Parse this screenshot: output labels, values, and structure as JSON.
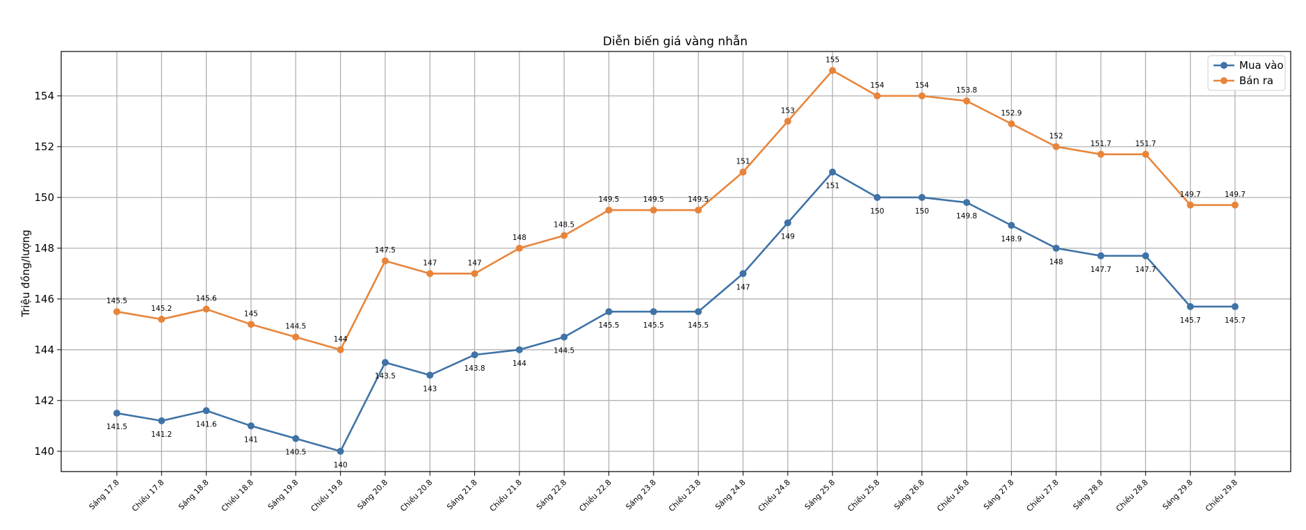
{
  "chart_data": {
    "type": "line",
    "title": "Diễn biến giá vàng nhẫn",
    "xlabel": "",
    "ylabel": "Triệu đồng/lượng",
    "ylim": [
      139.2,
      155.75
    ],
    "yticks": [
      140,
      142,
      144,
      146,
      148,
      150,
      152,
      154
    ],
    "grid": true,
    "legend_position": "top-right",
    "categories": [
      "Sáng 17.8",
      "Chiều 17.8",
      "Sáng 18.8",
      "Chiều 18.8",
      "Sáng 19.8",
      "Chiều 19.8",
      "Sáng 20.8",
      "Chiều 20.8",
      "Sáng 21.8",
      "Chiều 21.8",
      "Sáng 22.8",
      "Chiều 22.8",
      "Sáng 23.8",
      "Chiều 23.8",
      "Sáng 24.8",
      "Chiều 24.8",
      "Sáng 25.8",
      "Chiều 25.8",
      "Sáng 26.8",
      "Chiều 26.8",
      "Sáng 27.8",
      "Chiều 27.8",
      "Sáng 28.8",
      "Chiều 28.8",
      "Sáng 29.8",
      "Chiều 29.8"
    ],
    "series": [
      {
        "name": "Mua vào",
        "color": "#3f72a6",
        "label_position": "below",
        "values": [
          141.5,
          141.2,
          141.6,
          141,
          140.5,
          140,
          143.5,
          143,
          143.8,
          144,
          144.5,
          145.5,
          145.5,
          145.5,
          147,
          149,
          151,
          150,
          150,
          149.8,
          148.9,
          148,
          147.7,
          147.7,
          145.7,
          145.7
        ]
      },
      {
        "name": "Bán ra",
        "color": "#e8843a",
        "label_position": "above",
        "values": [
          145.5,
          145.2,
          145.6,
          145,
          144.5,
          144,
          147.5,
          147,
          147,
          148,
          148.5,
          149.5,
          149.5,
          149.5,
          151,
          153,
          155,
          154,
          154,
          153.8,
          152.9,
          152,
          151.7,
          151.7,
          149.7,
          149.7
        ]
      }
    ]
  }
}
